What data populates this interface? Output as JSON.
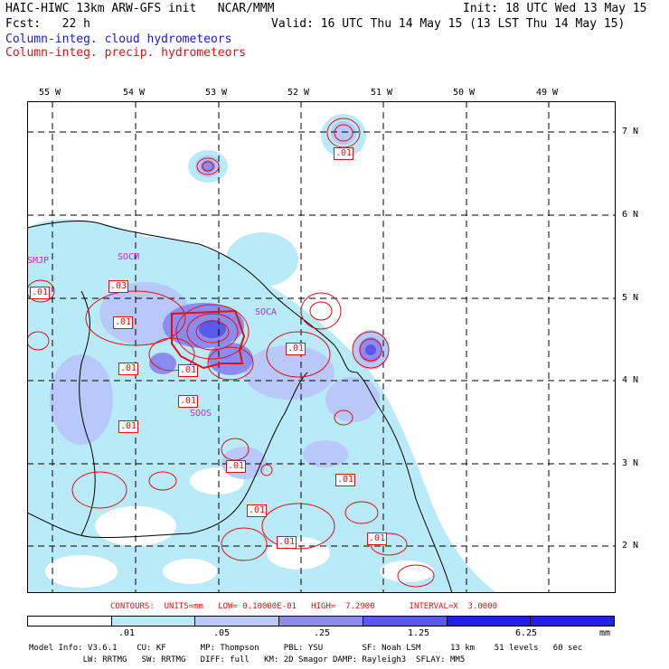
{
  "header": {
    "line1_left": "HAIC-HIWC 13km ARW-GFS init   NCAR/MMM",
    "line1_right": "Init: 18 UTC Wed 13 May 15",
    "line2_left": "Fcst:   22 h",
    "line2_right": "Valid: 16 UTC Thu 14 May 15 (13 LST Thu 14 May 15)",
    "field1": "Column-integ. cloud hydrometeors",
    "field2": "Column-integ. precip. hydrometeors"
  },
  "axes": {
    "lon_labels": [
      "55 W",
      "54 W",
      "53 W",
      "52 W",
      "51 W",
      "50 W",
      "49 W"
    ],
    "lat_labels": [
      "7 N",
      "6 N",
      "5 N",
      "4 N",
      "3 N",
      "2 N"
    ]
  },
  "stations": [
    "SMJP",
    "SOCM",
    "SOCA",
    "SOOS"
  ],
  "contour_labels": [
    ".03",
    ".01",
    ".01",
    ".01",
    ".01",
    ".01",
    ".01",
    ".01",
    ".01",
    ".01",
    ".01",
    ".01",
    ".01",
    ".01",
    ".01"
  ],
  "contour_info": {
    "text": "CONTOURS:  UNITS=mm   LOW= 0.10000E-01   HIGH=  7.2900       INTERVAL=X  3.0000"
  },
  "legend": {
    "ticks": [
      ".01",
      ".05",
      ".25",
      "1.25",
      "6.25"
    ],
    "units": "mm",
    "colors": [
      "#ffffff",
      "#b8eaf8",
      "#b8c8f8",
      "#8c8cf0",
      "#5a5ae8",
      "#2020e8"
    ]
  },
  "model_info": {
    "line1": "Model Info: V3.6.1    CU: KF       MP: Thompson     PBL: YSU        SF: Noah LSM      13 km    51 levels   60 sec",
    "line2": "           LW: RRTMG   SW: RRTMG   DIFF: full   KM: 2D Smagor DAMP: Rayleigh3  SFLAY: MM5"
  }
}
